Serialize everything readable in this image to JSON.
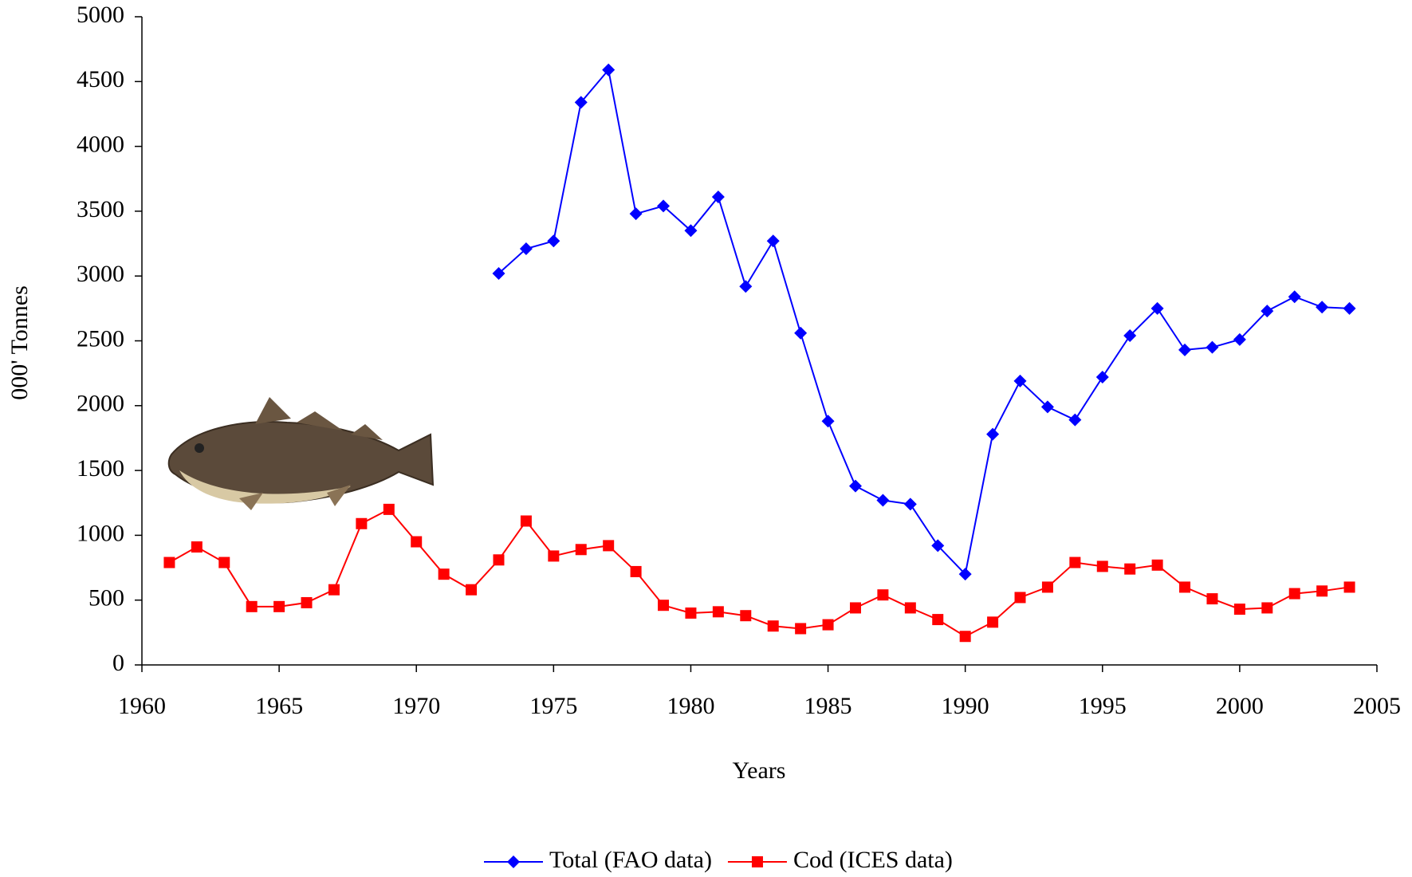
{
  "chart_data": {
    "type": "line",
    "x_label": "Years",
    "y_label": "000' Tonnes",
    "x": [
      1961,
      1962,
      1963,
      1964,
      1965,
      1966,
      1967,
      1968,
      1969,
      1970,
      1971,
      1972,
      1973,
      1974,
      1975,
      1976,
      1977,
      1978,
      1979,
      1980,
      1981,
      1982,
      1983,
      1984,
      1985,
      1986,
      1987,
      1988,
      1989,
      1990,
      1991,
      1992,
      1993,
      1994,
      1995,
      1996,
      1997,
      1998,
      1999,
      2000,
      2001,
      2002,
      2003,
      2004
    ],
    "series": [
      {
        "name": "Total (FAO data)",
        "color": "#0000ff",
        "marker": "diamond",
        "values": [
          null,
          null,
          null,
          null,
          null,
          null,
          null,
          null,
          null,
          null,
          null,
          null,
          3020,
          3210,
          3270,
          4340,
          4590,
          3480,
          3540,
          3350,
          3610,
          2920,
          3270,
          2560,
          1880,
          1380,
          1270,
          1240,
          920,
          700,
          1780,
          2190,
          1990,
          1890,
          2220,
          2540,
          2750,
          2430,
          2450,
          2510,
          2730,
          2840,
          2760,
          2750
        ]
      },
      {
        "name": "Cod (ICES data)",
        "color": "#ff0000",
        "marker": "square",
        "values": [
          790,
          910,
          790,
          450,
          450,
          480,
          580,
          1090,
          1200,
          950,
          700,
          580,
          810,
          1110,
          840,
          890,
          920,
          720,
          460,
          400,
          410,
          380,
          300,
          280,
          310,
          440,
          540,
          440,
          350,
          220,
          330,
          520,
          600,
          790,
          760,
          740,
          770,
          600,
          510,
          430,
          440,
          550,
          570,
          600
        ]
      }
    ],
    "xlim": [
      1960,
      2005
    ],
    "xticks": [
      1960,
      1965,
      1970,
      1975,
      1980,
      1985,
      1990,
      1995,
      2000,
      2005
    ],
    "ylim": [
      0,
      5000
    ],
    "yticks": [
      0,
      500,
      1000,
      1500,
      2000,
      2500,
      3000,
      3500,
      4000,
      4500,
      5000
    ],
    "grid": false,
    "legend": "bottom"
  }
}
